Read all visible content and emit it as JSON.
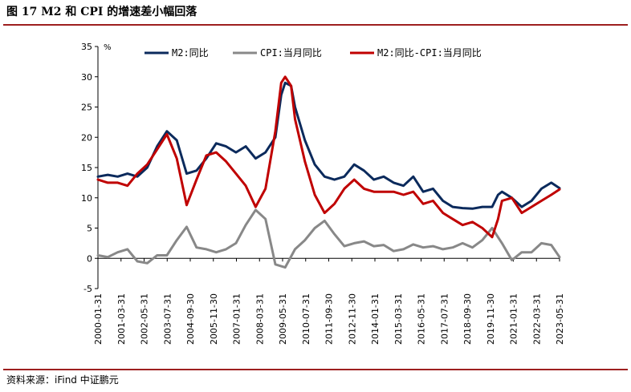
{
  "figure": {
    "title": "图 17   M2 和 CPI 的增速差小幅回落",
    "source": "资料来源：iFind 中证鹏元"
  },
  "chart_data": {
    "type": "line",
    "title": "图 17   M2 和 CPI 的增速差小幅回落",
    "ylabel": "%",
    "ylim": [
      -5,
      35
    ],
    "yticks": [
      -5,
      0,
      5,
      10,
      15,
      20,
      25,
      30,
      35
    ],
    "xlim": [
      2000.0,
      2023.42
    ],
    "xtick_labels": [
      "2000-01-31",
      "2001-03-31",
      "2002-05-31",
      "2003-07-31",
      "2004-09-30",
      "2005-11-30",
      "2007-01-31",
      "2008-03-31",
      "2009-05-31",
      "2010-07-31",
      "2011-09-30",
      "2012-11-30",
      "2014-01-31",
      "2015-03-31",
      "2016-05-31",
      "2017-07-31",
      "2018-09-30",
      "2019-11-30",
      "2021-01-31",
      "2022-03-31",
      "2023-05-31"
    ],
    "legend_position": "top",
    "grid": false,
    "series": [
      {
        "name": "M2:同比",
        "color": "#0b2a5c",
        "x": [
          2000.0,
          2000.5,
          2001.0,
          2001.5,
          2002.0,
          2002.5,
          2003.0,
          2003.5,
          2004.0,
          2004.5,
          2005.0,
          2005.5,
          2006.0,
          2006.5,
          2007.0,
          2007.5,
          2008.0,
          2008.5,
          2009.0,
          2009.3,
          2009.5,
          2009.8,
          2010.0,
          2010.5,
          2011.0,
          2011.5,
          2012.0,
          2012.5,
          2013.0,
          2013.5,
          2014.0,
          2014.5,
          2015.0,
          2015.5,
          2016.0,
          2016.5,
          2017.0,
          2017.5,
          2018.0,
          2018.5,
          2019.0,
          2019.5,
          2020.0,
          2020.3,
          2020.5,
          2021.0,
          2021.5,
          2022.0,
          2022.5,
          2023.0,
          2023.42
        ],
        "y": [
          13.5,
          13.8,
          13.5,
          14.0,
          13.5,
          15.0,
          18.5,
          21.0,
          19.5,
          14.0,
          14.5,
          16.5,
          19.0,
          18.5,
          17.5,
          18.5,
          16.5,
          17.5,
          20.0,
          27.0,
          29.0,
          28.5,
          25.0,
          19.5,
          15.5,
          13.5,
          13.0,
          13.5,
          15.5,
          14.5,
          13.0,
          13.5,
          12.5,
          12.0,
          13.5,
          11.0,
          11.5,
          9.5,
          8.5,
          8.3,
          8.2,
          8.5,
          8.5,
          10.5,
          11.0,
          10.0,
          8.5,
          9.5,
          11.5,
          12.5,
          11.6
        ]
      },
      {
        "name": "CPI:当月同比",
        "color": "#888888",
        "x": [
          2000.0,
          2000.5,
          2001.0,
          2001.5,
          2002.0,
          2002.5,
          2003.0,
          2003.5,
          2004.0,
          2004.5,
          2005.0,
          2005.5,
          2006.0,
          2006.5,
          2007.0,
          2007.5,
          2008.0,
          2008.5,
          2009.0,
          2009.5,
          2010.0,
          2010.5,
          2011.0,
          2011.5,
          2012.0,
          2012.5,
          2013.0,
          2013.5,
          2014.0,
          2014.5,
          2015.0,
          2015.5,
          2016.0,
          2016.5,
          2017.0,
          2017.5,
          2018.0,
          2018.5,
          2019.0,
          2019.5,
          2020.0,
          2020.5,
          2021.0,
          2021.5,
          2022.0,
          2022.5,
          2023.0,
          2023.42
        ],
        "y": [
          0.5,
          0.2,
          1.0,
          1.5,
          -0.5,
          -0.8,
          0.5,
          0.5,
          3.0,
          5.2,
          1.8,
          1.5,
          1.0,
          1.5,
          2.5,
          5.5,
          8.0,
          6.5,
          -1.0,
          -1.5,
          1.5,
          3.0,
          5.0,
          6.2,
          4.0,
          2.0,
          2.5,
          2.8,
          2.0,
          2.2,
          1.2,
          1.5,
          2.3,
          1.8,
          2.0,
          1.5,
          1.8,
          2.5,
          1.8,
          3.0,
          5.0,
          2.5,
          -0.3,
          1.0,
          1.0,
          2.5,
          2.2,
          0.2
        ]
      },
      {
        "name": "M2:同比-CPI:当月同比",
        "color": "#c00000",
        "x": [
          2000.0,
          2000.5,
          2001.0,
          2001.5,
          2002.0,
          2002.5,
          2003.0,
          2003.5,
          2004.0,
          2004.5,
          2005.0,
          2005.5,
          2006.0,
          2006.5,
          2007.0,
          2007.5,
          2008.0,
          2008.5,
          2009.0,
          2009.3,
          2009.5,
          2009.8,
          2010.0,
          2010.5,
          2011.0,
          2011.5,
          2012.0,
          2012.5,
          2013.0,
          2013.5,
          2014.0,
          2014.5,
          2015.0,
          2015.5,
          2016.0,
          2016.5,
          2017.0,
          2017.5,
          2018.0,
          2018.5,
          2019.0,
          2019.5,
          2020.0,
          2020.3,
          2020.5,
          2021.0,
          2021.5,
          2022.0,
          2022.5,
          2023.0,
          2023.42
        ],
        "y": [
          13.0,
          12.5,
          12.5,
          12.0,
          14.0,
          15.5,
          18.0,
          20.5,
          16.5,
          8.8,
          13.0,
          17.0,
          17.5,
          16.0,
          14.0,
          12.0,
          8.5,
          11.5,
          21.0,
          29.0,
          30.0,
          28.5,
          23.0,
          16.0,
          10.5,
          7.5,
          9.0,
          11.5,
          13.0,
          11.5,
          11.0,
          11.0,
          11.0,
          10.5,
          11.0,
          9.0,
          9.5,
          7.5,
          6.5,
          5.5,
          6.0,
          5.0,
          3.5,
          6.5,
          9.5,
          10.0,
          7.5,
          8.5,
          9.5,
          10.5,
          11.4
        ]
      }
    ]
  }
}
